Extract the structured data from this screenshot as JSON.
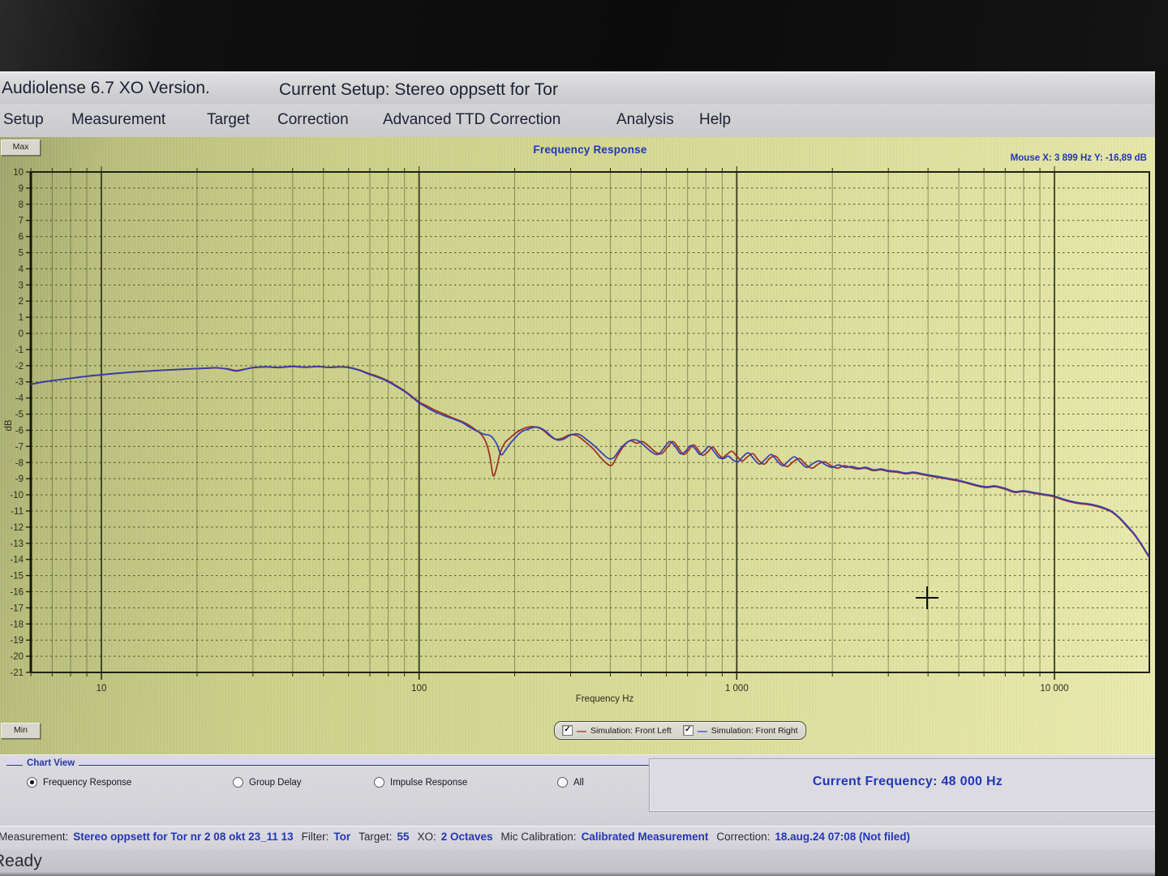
{
  "window": {
    "title_left": "Audiolense 6.7 XO Version.",
    "title_right": "Current Setup: Stereo oppsett for Tor"
  },
  "menu": {
    "items": [
      "Setup",
      "Measurement",
      "Target",
      "Correction",
      "Advanced TTD Correction",
      "Analysis",
      "Help"
    ]
  },
  "chart_header": {
    "title": "Frequency Response",
    "mouse_readout": "Mouse X: 3 899 Hz   Y: -16,89 dB",
    "max_button": "Max",
    "min_button": "Min"
  },
  "legend": {
    "items": [
      {
        "label": "Simulation: Front Left",
        "color": "#9e2a1f",
        "checked": true
      },
      {
        "label": "Simulation: Front Right",
        "color": "#2f3db8",
        "checked": true
      }
    ]
  },
  "chart_view": {
    "group_label": "Chart View",
    "options": [
      {
        "label": "Frequency Response",
        "selected": true
      },
      {
        "label": "Group Delay",
        "selected": false
      },
      {
        "label": "Impulse Response",
        "selected": false
      },
      {
        "label": "All",
        "selected": false
      }
    ]
  },
  "current_frequency": {
    "text": "Current Frequency: 48 000 Hz"
  },
  "status_bar": {
    "segments": [
      {
        "label": "Measurement:",
        "value": "Stereo oppsett for Tor nr 2 08 okt 23_11 13"
      },
      {
        "label": "Filter:",
        "value": "Tor"
      },
      {
        "label": "Target:",
        "value": "55"
      },
      {
        "label": "XO:",
        "value": "2 Octaves"
      },
      {
        "label": "Mic Calibration:",
        "value": "Calibrated Measurement"
      },
      {
        "label": "Correction:",
        "value": "18.aug.24 07:08 (Not filed)"
      }
    ]
  },
  "status_ready": "Ready",
  "colors": {
    "accent_blue": "#2336b8",
    "series_left": "#9e2a1f",
    "series_right": "#2f3db8",
    "plot_bg": "#d3d890",
    "grid": "#3c4222"
  },
  "chart_data": {
    "type": "line",
    "title": "Frequency Response",
    "xlabel": "Frequency Hz",
    "ylabel": "dB",
    "x_scale": "log",
    "xlim": [
      6,
      19900
    ],
    "ylim": [
      -21,
      10
    ],
    "grid": true,
    "legend_position": "bottom",
    "x_ticks": [
      {
        "value": 10,
        "label": "10"
      },
      {
        "value": 100,
        "label": "100"
      },
      {
        "value": 1000,
        "label": "1 000"
      },
      {
        "value": 10000,
        "label": "10 000"
      }
    ],
    "y_ticks": [
      10,
      9,
      8,
      7,
      6,
      5,
      4,
      3,
      2,
      1,
      0,
      -1,
      -2,
      -3,
      -4,
      -5,
      -6,
      -7,
      -8,
      -9,
      -10,
      -11,
      -12,
      -13,
      -14,
      -15,
      -16,
      -17,
      -18,
      -19,
      -20,
      -21
    ],
    "cursor": {
      "x_hz": 3899,
      "y_db": -16.89
    },
    "series": [
      {
        "name": "Simulation: Front Left",
        "color": "#9e2a1f",
        "points": [
          [
            6,
            -3.15
          ],
          [
            6.6,
            -3.0
          ],
          [
            7.3,
            -2.88
          ],
          [
            8,
            -2.78
          ],
          [
            9,
            -2.66
          ],
          [
            10,
            -2.57
          ],
          [
            11.5,
            -2.46
          ],
          [
            13,
            -2.38
          ],
          [
            15,
            -2.3
          ],
          [
            17,
            -2.25
          ],
          [
            19,
            -2.2
          ],
          [
            21,
            -2.17
          ],
          [
            23,
            -2.14
          ],
          [
            25,
            -2.2
          ],
          [
            26.5,
            -2.3
          ],
          [
            28,
            -2.23
          ],
          [
            30,
            -2.13
          ],
          [
            33,
            -2.08
          ],
          [
            36,
            -2.12
          ],
          [
            40,
            -2.06
          ],
          [
            44,
            -2.1
          ],
          [
            48,
            -2.05
          ],
          [
            52,
            -2.1
          ],
          [
            57,
            -2.06
          ],
          [
            61,
            -2.12
          ],
          [
            65,
            -2.27
          ],
          [
            70,
            -2.5
          ],
          [
            75,
            -2.7
          ],
          [
            80,
            -2.95
          ],
          [
            85,
            -3.25
          ],
          [
            90,
            -3.55
          ],
          [
            95,
            -3.9
          ],
          [
            100,
            -4.25
          ],
          [
            106,
            -4.5
          ],
          [
            112,
            -4.75
          ],
          [
            120,
            -5.0
          ],
          [
            128,
            -5.25
          ],
          [
            136,
            -5.45
          ],
          [
            144,
            -5.7
          ],
          [
            150,
            -5.95
          ],
          [
            156,
            -6.2
          ],
          [
            162,
            -6.7
          ],
          [
            167,
            -7.6
          ],
          [
            171,
            -8.8
          ],
          [
            175,
            -8.4
          ],
          [
            180,
            -7.4
          ],
          [
            186,
            -6.8
          ],
          [
            194,
            -6.45
          ],
          [
            204,
            -6.1
          ],
          [
            216,
            -5.85
          ],
          [
            230,
            -5.78
          ],
          [
            244,
            -5.95
          ],
          [
            256,
            -6.3
          ],
          [
            268,
            -6.55
          ],
          [
            282,
            -6.5
          ],
          [
            298,
            -6.28
          ],
          [
            315,
            -6.35
          ],
          [
            335,
            -6.75
          ],
          [
            355,
            -7.2
          ],
          [
            375,
            -7.75
          ],
          [
            392,
            -8.1
          ],
          [
            405,
            -8.15
          ],
          [
            422,
            -7.55
          ],
          [
            442,
            -6.95
          ],
          [
            462,
            -6.65
          ],
          [
            485,
            -6.8
          ],
          [
            505,
            -6.7
          ],
          [
            530,
            -7.0
          ],
          [
            555,
            -7.35
          ],
          [
            580,
            -7.45
          ],
          [
            605,
            -7.05
          ],
          [
            630,
            -6.7
          ],
          [
            655,
            -7.1
          ],
          [
            680,
            -7.5
          ],
          [
            705,
            -7.25
          ],
          [
            730,
            -6.9
          ],
          [
            755,
            -7.2
          ],
          [
            780,
            -7.55
          ],
          [
            810,
            -7.35
          ],
          [
            840,
            -7.05
          ],
          [
            870,
            -7.4
          ],
          [
            900,
            -7.7
          ],
          [
            930,
            -7.5
          ],
          [
            965,
            -7.3
          ],
          [
            1000,
            -7.6
          ],
          [
            1040,
            -7.9
          ],
          [
            1080,
            -7.65
          ],
          [
            1125,
            -7.45
          ],
          [
            1170,
            -7.85
          ],
          [
            1220,
            -8.1
          ],
          [
            1270,
            -7.75
          ],
          [
            1325,
            -7.6
          ],
          [
            1380,
            -8.0
          ],
          [
            1440,
            -8.25
          ],
          [
            1505,
            -7.95
          ],
          [
            1575,
            -7.75
          ],
          [
            1645,
            -8.1
          ],
          [
            1725,
            -8.35
          ],
          [
            1805,
            -8.1
          ],
          [
            1890,
            -7.95
          ],
          [
            1980,
            -8.2
          ],
          [
            2075,
            -8.35
          ],
          [
            2175,
            -8.2
          ],
          [
            2280,
            -8.3
          ],
          [
            2400,
            -8.4
          ],
          [
            2540,
            -8.35
          ],
          [
            2690,
            -8.5
          ],
          [
            2840,
            -8.45
          ],
          [
            3000,
            -8.55
          ],
          [
            3200,
            -8.6
          ],
          [
            3400,
            -8.7
          ],
          [
            3600,
            -8.65
          ],
          [
            3850,
            -8.75
          ],
          [
            4100,
            -8.85
          ],
          [
            4400,
            -8.95
          ],
          [
            4700,
            -9.05
          ],
          [
            5000,
            -9.15
          ],
          [
            5350,
            -9.3
          ],
          [
            5700,
            -9.45
          ],
          [
            6100,
            -9.55
          ],
          [
            6500,
            -9.5
          ],
          [
            7000,
            -9.65
          ],
          [
            7500,
            -9.85
          ],
          [
            8000,
            -9.8
          ],
          [
            8600,
            -9.9
          ],
          [
            9200,
            -10.0
          ],
          [
            9900,
            -10.1
          ],
          [
            10600,
            -10.3
          ],
          [
            11300,
            -10.45
          ],
          [
            12000,
            -10.55
          ],
          [
            12700,
            -10.6
          ],
          [
            13500,
            -10.7
          ],
          [
            14300,
            -10.85
          ],
          [
            15100,
            -11.05
          ],
          [
            16000,
            -11.45
          ],
          [
            16900,
            -11.95
          ],
          [
            17800,
            -12.45
          ],
          [
            18700,
            -13.05
          ],
          [
            19400,
            -13.55
          ],
          [
            19900,
            -13.9
          ]
        ]
      },
      {
        "name": "Simulation: Front Right",
        "color": "#2f3db8",
        "points": [
          [
            6,
            -3.15
          ],
          [
            6.6,
            -3.0
          ],
          [
            7.3,
            -2.88
          ],
          [
            8,
            -2.78
          ],
          [
            9,
            -2.65
          ],
          [
            10,
            -2.56
          ],
          [
            11.5,
            -2.45
          ],
          [
            13,
            -2.37
          ],
          [
            15,
            -2.3
          ],
          [
            17,
            -2.24
          ],
          [
            19,
            -2.2
          ],
          [
            21,
            -2.16
          ],
          [
            23,
            -2.13
          ],
          [
            25,
            -2.22
          ],
          [
            26.5,
            -2.33
          ],
          [
            28,
            -2.25
          ],
          [
            30,
            -2.12
          ],
          [
            33,
            -2.07
          ],
          [
            36,
            -2.1
          ],
          [
            40,
            -2.04
          ],
          [
            44,
            -2.09
          ],
          [
            48,
            -2.06
          ],
          [
            52,
            -2.11
          ],
          [
            57,
            -2.08
          ],
          [
            61,
            -2.15
          ],
          [
            65,
            -2.3
          ],
          [
            70,
            -2.55
          ],
          [
            75,
            -2.75
          ],
          [
            80,
            -3.0
          ],
          [
            85,
            -3.3
          ],
          [
            90,
            -3.6
          ],
          [
            95,
            -3.95
          ],
          [
            100,
            -4.3
          ],
          [
            106,
            -4.6
          ],
          [
            112,
            -4.85
          ],
          [
            120,
            -5.1
          ],
          [
            128,
            -5.3
          ],
          [
            136,
            -5.5
          ],
          [
            144,
            -5.8
          ],
          [
            152,
            -6.05
          ],
          [
            160,
            -6.25
          ],
          [
            168,
            -6.35
          ],
          [
            175,
            -6.8
          ],
          [
            181,
            -7.5
          ],
          [
            186,
            -7.3
          ],
          [
            192,
            -6.9
          ],
          [
            200,
            -6.5
          ],
          [
            210,
            -6.1
          ],
          [
            222,
            -5.9
          ],
          [
            235,
            -5.8
          ],
          [
            248,
            -6.0
          ],
          [
            260,
            -6.35
          ],
          [
            272,
            -6.6
          ],
          [
            285,
            -6.55
          ],
          [
            300,
            -6.3
          ],
          [
            318,
            -6.25
          ],
          [
            338,
            -6.6
          ],
          [
            358,
            -7.0
          ],
          [
            378,
            -7.45
          ],
          [
            395,
            -7.75
          ],
          [
            410,
            -7.7
          ],
          [
            428,
            -7.2
          ],
          [
            448,
            -6.8
          ],
          [
            468,
            -6.6
          ],
          [
            490,
            -6.65
          ],
          [
            515,
            -7.0
          ],
          [
            540,
            -7.35
          ],
          [
            565,
            -7.5
          ],
          [
            590,
            -7.1
          ],
          [
            615,
            -6.7
          ],
          [
            640,
            -7.0
          ],
          [
            665,
            -7.45
          ],
          [
            690,
            -7.3
          ],
          [
            715,
            -6.95
          ],
          [
            740,
            -7.15
          ],
          [
            765,
            -7.5
          ],
          [
            790,
            -7.3
          ],
          [
            820,
            -7.0
          ],
          [
            850,
            -7.35
          ],
          [
            880,
            -7.7
          ],
          [
            910,
            -7.75
          ],
          [
            940,
            -7.6
          ],
          [
            975,
            -7.85
          ],
          [
            1010,
            -7.95
          ],
          [
            1050,
            -7.6
          ],
          [
            1090,
            -7.4
          ],
          [
            1135,
            -7.8
          ],
          [
            1180,
            -8.1
          ],
          [
            1230,
            -7.8
          ],
          [
            1285,
            -7.5
          ],
          [
            1340,
            -7.9
          ],
          [
            1395,
            -8.2
          ],
          [
            1455,
            -7.9
          ],
          [
            1520,
            -7.65
          ],
          [
            1590,
            -8.0
          ],
          [
            1660,
            -8.3
          ],
          [
            1740,
            -8.05
          ],
          [
            1820,
            -7.9
          ],
          [
            1905,
            -8.15
          ],
          [
            1995,
            -8.3
          ],
          [
            2090,
            -8.15
          ],
          [
            2190,
            -8.3
          ],
          [
            2300,
            -8.25
          ],
          [
            2420,
            -8.35
          ],
          [
            2550,
            -8.3
          ],
          [
            2700,
            -8.45
          ],
          [
            2850,
            -8.4
          ],
          [
            3000,
            -8.5
          ],
          [
            3200,
            -8.55
          ],
          [
            3400,
            -8.65
          ],
          [
            3600,
            -8.6
          ],
          [
            3850,
            -8.7
          ],
          [
            4100,
            -8.8
          ],
          [
            4400,
            -8.9
          ],
          [
            4700,
            -9.0
          ],
          [
            5000,
            -9.1
          ],
          [
            5350,
            -9.25
          ],
          [
            5700,
            -9.4
          ],
          [
            6100,
            -9.5
          ],
          [
            6500,
            -9.45
          ],
          [
            7000,
            -9.6
          ],
          [
            7500,
            -9.8
          ],
          [
            8000,
            -9.75
          ],
          [
            8600,
            -9.85
          ],
          [
            9200,
            -9.95
          ],
          [
            9900,
            -10.05
          ],
          [
            10600,
            -10.25
          ],
          [
            11300,
            -10.4
          ],
          [
            12000,
            -10.5
          ],
          [
            12700,
            -10.55
          ],
          [
            13500,
            -10.65
          ],
          [
            14300,
            -10.8
          ],
          [
            15100,
            -11.0
          ],
          [
            16000,
            -11.4
          ],
          [
            16900,
            -11.9
          ],
          [
            17800,
            -12.4
          ],
          [
            18700,
            -13.0
          ],
          [
            19400,
            -13.5
          ],
          [
            19900,
            -13.85
          ]
        ]
      }
    ]
  }
}
